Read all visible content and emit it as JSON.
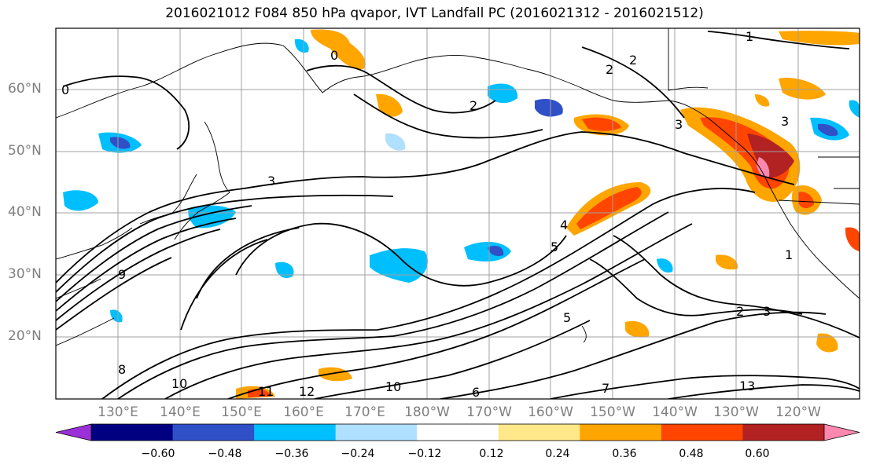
{
  "title": "2016021012 F084 850 hPa qvapor, IVT Landfall PC (2016021312 - 2016021512)",
  "lat_labels": [
    {
      "text": "60°N",
      "lat": 60
    },
    {
      "text": "50°N",
      "lat": 50
    },
    {
      "text": "40°N",
      "lat": 40
    },
    {
      "text": "30°N",
      "lat": 30
    },
    {
      "text": "20°N",
      "lat": 20
    }
  ],
  "lon_labels": [
    {
      "text": "130°E",
      "lon": 130
    },
    {
      "text": "140°E",
      "lon": 140
    },
    {
      "text": "150°E",
      "lon": 150
    },
    {
      "text": "160°E",
      "lon": 160
    },
    {
      "text": "170°E",
      "lon": 170
    },
    {
      "text": "180°W",
      "lon": 180
    },
    {
      "text": "170°W",
      "lon": 190
    },
    {
      "text": "160°W",
      "lon": 200
    },
    {
      "text": "150°W",
      "lon": 210
    },
    {
      "text": "140°W",
      "lon": 220
    },
    {
      "text": "130°W",
      "lon": 230
    },
    {
      "text": "120°W",
      "lon": 240
    }
  ],
  "colorbar": {
    "ticks": [
      "−0.60",
      "−0.48",
      "−0.36",
      "−0.24",
      "−0.12",
      "0.12",
      "0.24",
      "0.36",
      "0.48",
      "0.60"
    ],
    "colors": [
      "#9b30d9",
      "#000080",
      "#3050c8",
      "#00bfff",
      "#b0e0ff",
      "#ffffff",
      "#ffe88a",
      "#ffa500",
      "#ff4500",
      "#b22222",
      "#ff88b0"
    ]
  },
  "contour_labels": [
    "0",
    "0",
    "1",
    "2",
    "2",
    "2",
    "3",
    "3",
    "3",
    "4",
    "5",
    "5",
    "6",
    "7",
    "8",
    "9",
    "10",
    "10",
    "11",
    "12",
    "13",
    "1",
    "2",
    "3"
  ]
}
